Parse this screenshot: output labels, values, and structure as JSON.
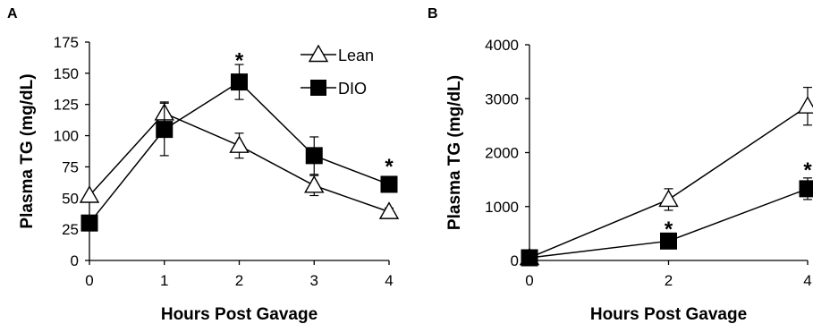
{
  "chart_data": [
    {
      "panel": "A",
      "type": "line",
      "x": [
        0,
        1,
        2,
        3,
        4
      ],
      "xlim": [
        0,
        4
      ],
      "ylim": [
        0,
        175
      ],
      "yticks": [
        0,
        25,
        50,
        75,
        100,
        125,
        150,
        175
      ],
      "xticks": [
        0,
        1,
        2,
        3,
        4
      ],
      "xlabel": "Hours Post Gavage",
      "ylabel": "Plasma TG (mg/dL)",
      "legend_position": "top-right",
      "grid": false,
      "series": [
        {
          "name": "Lean",
          "marker": "open-triangle",
          "values": [
            52,
            118,
            92,
            60,
            39
          ],
          "errors": [
            0,
            9,
            10,
            8,
            3
          ]
        },
        {
          "name": "DIO",
          "marker": "filled-square",
          "values": [
            30,
            105,
            143,
            84,
            61
          ],
          "errors": [
            0,
            21,
            14,
            15,
            6
          ]
        }
      ],
      "significance": [
        {
          "x": 2,
          "y": 163,
          "label": "*"
        },
        {
          "x": 4,
          "y": 78,
          "label": "*"
        }
      ]
    },
    {
      "panel": "B",
      "type": "line",
      "x": [
        0,
        2,
        4
      ],
      "xlim": [
        0,
        4
      ],
      "ylim": [
        0,
        4000
      ],
      "yticks": [
        0,
        1000,
        2000,
        3000,
        4000
      ],
      "xticks": [
        0,
        2,
        4
      ],
      "xlabel": "Hours Post Gavage",
      "ylabel": "Plasma TG (mg/dL)",
      "grid": false,
      "series": [
        {
          "name": "Lean",
          "marker": "open-triangle",
          "values": [
            50,
            1130,
            2860
          ],
          "errors": [
            0,
            200,
            350
          ]
        },
        {
          "name": "DIO",
          "marker": "filled-square",
          "values": [
            50,
            360,
            1330
          ],
          "errors": [
            0,
            60,
            200
          ]
        }
      ],
      "significance": [
        {
          "x": 2,
          "y": 650,
          "label": "*"
        },
        {
          "x": 4,
          "y": 1740,
          "label": "*"
        }
      ]
    }
  ],
  "colors": {
    "line": "#000000",
    "open_marker_fill": "#ffffff",
    "filled_marker": "#000000"
  }
}
